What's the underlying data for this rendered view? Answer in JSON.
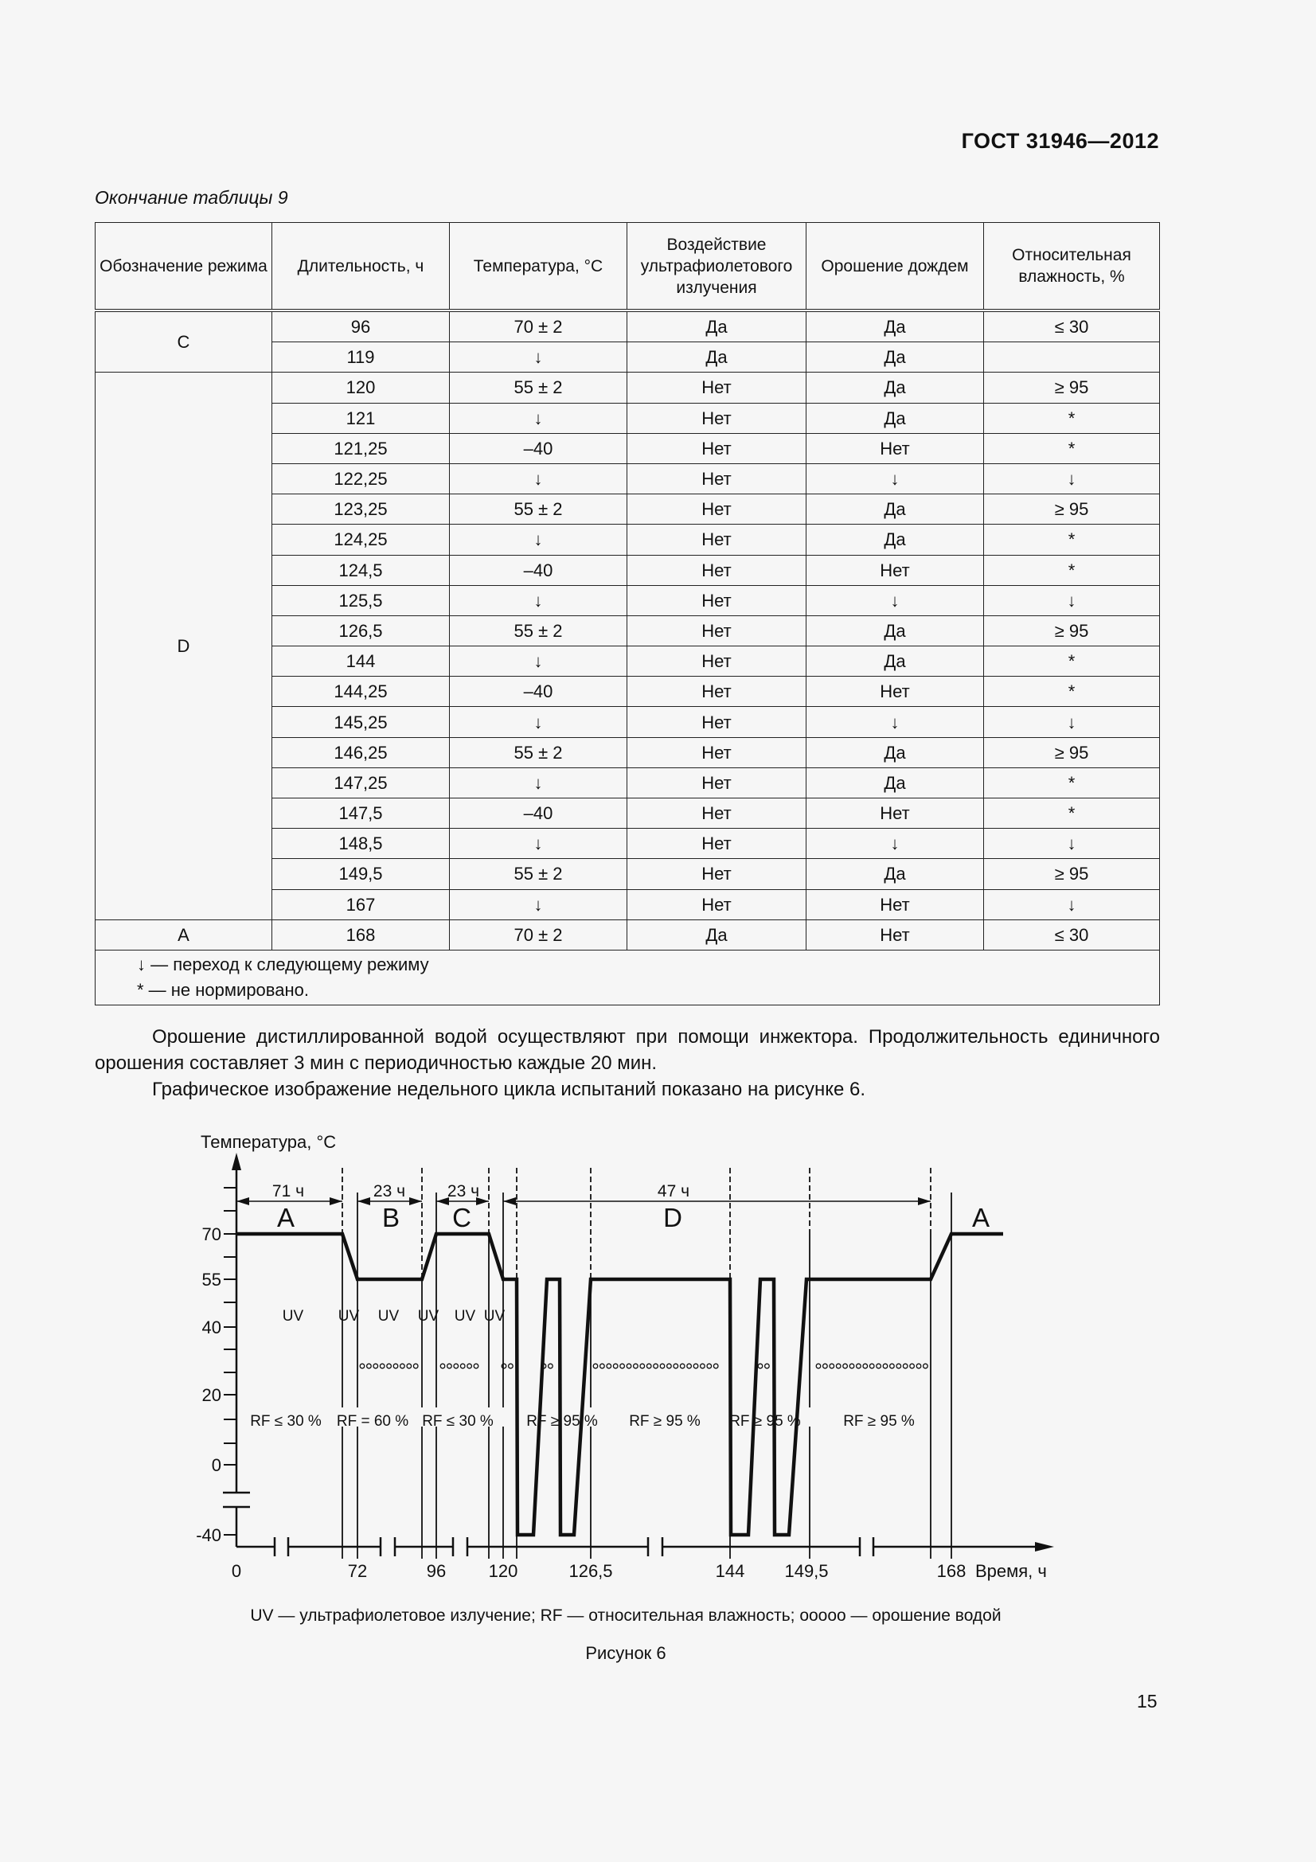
{
  "header": {
    "doc_code": "ГОСТ  31946—2012"
  },
  "table": {
    "caption": "Окончание таблицы 9",
    "columns": [
      "Обозначение режима",
      "Длительность, ч",
      "Температура, °С",
      "Воздействие ультрафиолетового излучения",
      "Орошение дождем",
      "Относительная влажность, %"
    ],
    "groups": [
      {
        "mode": "C",
        "rows": [
          [
            "96",
            "70 ± 2",
            "Да",
            "Да",
            "≤ 30"
          ],
          [
            "119",
            "↓",
            "Да",
            "Да",
            ""
          ]
        ]
      },
      {
        "mode": "D",
        "rows": [
          [
            "120",
            "55 ± 2",
            "Нет",
            "Да",
            "≥ 95"
          ],
          [
            "121",
            "↓",
            "Нет",
            "Да",
            "*"
          ],
          [
            "121,25",
            "–40",
            "Нет",
            "Нет",
            "*"
          ],
          [
            "122,25",
            "↓",
            "Нет",
            "↓",
            "↓"
          ],
          [
            "123,25",
            "55 ± 2",
            "Нет",
            "Да",
            "≥ 95"
          ],
          [
            "124,25",
            "↓",
            "Нет",
            "Да",
            "*"
          ],
          [
            "124,5",
            "–40",
            "Нет",
            "Нет",
            "*"
          ],
          [
            "125,5",
            "↓",
            "Нет",
            "↓",
            "↓"
          ],
          [
            "126,5",
            "55 ± 2",
            "Нет",
            "Да",
            "≥ 95"
          ],
          [
            "144",
            "↓",
            "Нет",
            "Да",
            "*"
          ],
          [
            "144,25",
            "–40",
            "Нет",
            "Нет",
            "*"
          ],
          [
            "145,25",
            "↓",
            "Нет",
            "↓",
            "↓"
          ],
          [
            "146,25",
            "55 ± 2",
            "Нет",
            "Да",
            "≥ 95"
          ],
          [
            "147,25",
            "↓",
            "Нет",
            "Да",
            "*"
          ],
          [
            "147,5",
            "–40",
            "Нет",
            "Нет",
            "*"
          ],
          [
            "148,5",
            "↓",
            "Нет",
            "↓",
            "↓"
          ],
          [
            "149,5",
            "55 ± 2",
            "Нет",
            "Да",
            "≥ 95"
          ],
          [
            "167",
            "↓",
            "Нет",
            "Нет",
            "↓"
          ]
        ]
      },
      {
        "mode": "A",
        "rows": [
          [
            "168",
            "70 ± 2",
            "Да",
            "Нет",
            "≤ 30"
          ]
        ]
      }
    ],
    "footnotes": [
      "↓ — переход к следующему режиму",
      "* — не нормировано."
    ]
  },
  "body": {
    "p1": "Орошение дистиллированной водой осуществляют при помощи инжектора. Продолжительность единичного орошения составляет 3 мин с периодичностью каждые 20 мин.",
    "p2": "Графическое изображение недельного цикла испытаний показано на рисунке 6."
  },
  "chart_data": {
    "type": "line",
    "ylabel": "Температура, °С",
    "xlabel": "Время, ч",
    "y_ticks": [
      "70",
      "55",
      "40",
      "20",
      "0",
      "-40"
    ],
    "x_ticks": [
      "0",
      "72",
      "96",
      "120",
      "126,5",
      "144",
      "149,5",
      "168"
    ],
    "axis_breaks": "both axes broken",
    "series": [
      {
        "points": [
          [
            0,
            70
          ],
          [
            71,
            70
          ],
          [
            72,
            55
          ],
          [
            95,
            55
          ],
          [
            96,
            70
          ],
          [
            119,
            70
          ],
          [
            120,
            55
          ],
          [
            121,
            55
          ],
          [
            121.25,
            -40
          ],
          [
            122.25,
            -40
          ],
          [
            123.25,
            55
          ],
          [
            124.25,
            55
          ],
          [
            124.5,
            -40
          ],
          [
            125.5,
            -40
          ],
          [
            126.5,
            55
          ],
          [
            144,
            55
          ],
          [
            144.25,
            -40
          ],
          [
            145.25,
            -40
          ],
          [
            146.25,
            55
          ],
          [
            147.25,
            55
          ],
          [
            147.5,
            -40
          ],
          [
            148.5,
            -40
          ],
          [
            149.5,
            55
          ],
          [
            167,
            55
          ],
          [
            168,
            70
          ]
        ]
      }
    ],
    "modes": [
      "A",
      "B",
      "C",
      "D",
      "A"
    ],
    "durations": [
      "71 ч",
      "23 ч",
      "23 ч",
      "47 ч"
    ],
    "uv_labels": [
      "UV",
      "UV",
      "UV",
      "UV",
      "UV",
      "UV"
    ],
    "rf_labels": [
      "RF ≤ 30 %",
      "RF = 60 %",
      "RF ≤ 30 %",
      "RF ≥ 95 %",
      "RF ≥ 95 %",
      "RF ≥ 95 %",
      "RF ≥ 95 %"
    ],
    "rain_marks": [
      9,
      6,
      2,
      2,
      19,
      2,
      17
    ],
    "legend": "UV — ультрафиолетовое излучение; RF — относительная влажность; ооооо — орошение водой",
    "figure_label": "Рисунок 6"
  },
  "page_number": "15"
}
